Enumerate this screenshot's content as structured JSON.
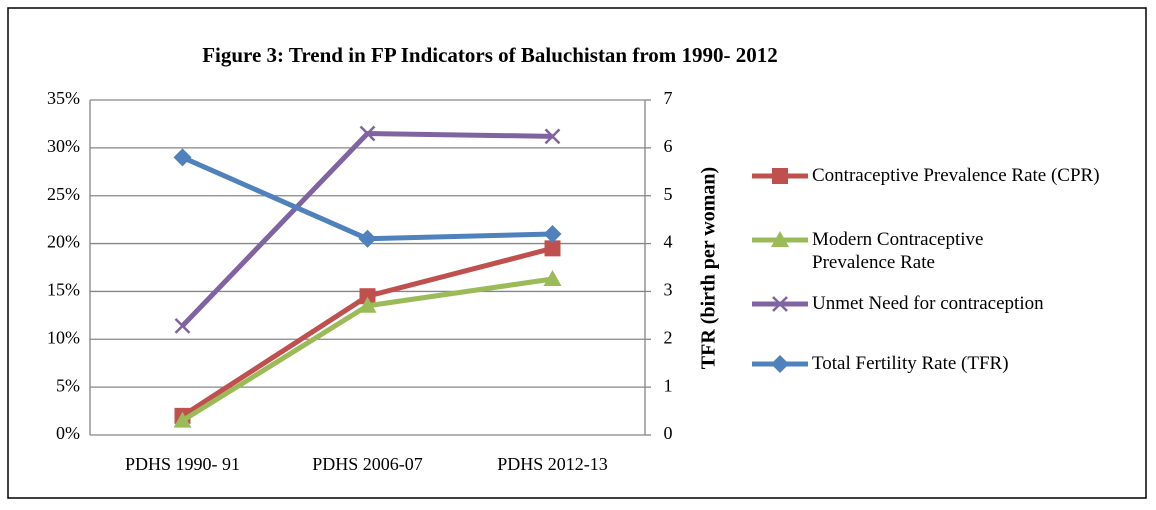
{
  "chart_data": {
    "type": "line",
    "title": "Figure 3: Trend in FP Indicators of Baluchistan from 1990- 2012",
    "y2label": "TFR (birth per woman)",
    "categories": [
      "PDHS 1990- 91",
      "PDHS 2006-07",
      "PDHS 2012-13"
    ],
    "ylim": [
      0,
      35
    ],
    "yticks": [
      {
        "value": 0,
        "label": "0%"
      },
      {
        "value": 5,
        "label": "5%"
      },
      {
        "value": 10,
        "label": "10%"
      },
      {
        "value": 15,
        "label": "15%"
      },
      {
        "value": 20,
        "label": "20%"
      },
      {
        "value": 25,
        "label": "25%"
      },
      {
        "value": 30,
        "label": "30%"
      },
      {
        "value": 35,
        "label": "35%"
      }
    ],
    "y2lim": [
      0,
      7
    ],
    "y2ticks": [
      0,
      1,
      2,
      3,
      4,
      5,
      6,
      7
    ],
    "grid": true,
    "legend": "right",
    "series": [
      {
        "name": "Contraceptive Prevalence Rate (CPR)",
        "color": "#c0504d",
        "marker": "square",
        "values": [
          2,
          14.5,
          19.5
        ]
      },
      {
        "name": "Modern Contraceptive Prevalence Rate",
        "color": "#9bbb59",
        "marker": "triangle",
        "values": [
          1.5,
          13.5,
          16.3
        ]
      },
      {
        "name": "Unmet Need for contraception",
        "color": "#8064a2",
        "marker": "x",
        "values": [
          11.4,
          31.5,
          31.2
        ]
      },
      {
        "name": "Total Fertility Rate (TFR)",
        "color": "#4f81bd",
        "marker": "diamond",
        "axis": "y2",
        "values": [
          5.8,
          4.1,
          4.2
        ]
      }
    ]
  }
}
